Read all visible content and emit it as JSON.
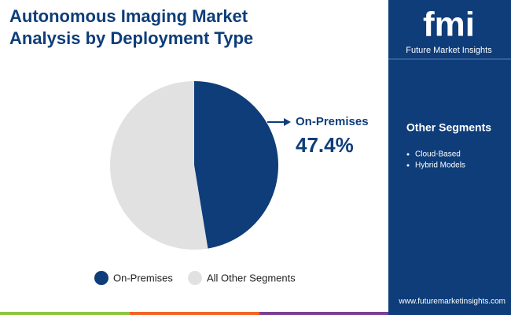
{
  "chart_data": {
    "type": "pie",
    "title": "Autonomous Imaging Market Analysis by Deployment Type",
    "categories": [
      "On-Premises",
      "All Other Segments"
    ],
    "values": [
      47.4,
      52.6
    ],
    "value_labels": [
      "47.4%",
      null
    ],
    "colors": [
      "#0e3d7a",
      "#e1e1e1"
    ]
  },
  "sidebar": {
    "logo": "fmi",
    "brand": "Future Market Insights",
    "heading": "Other Segments",
    "items": [
      "Cloud-Based",
      "Hybrid Models"
    ],
    "url": "www.futuremarketinsights.com"
  }
}
